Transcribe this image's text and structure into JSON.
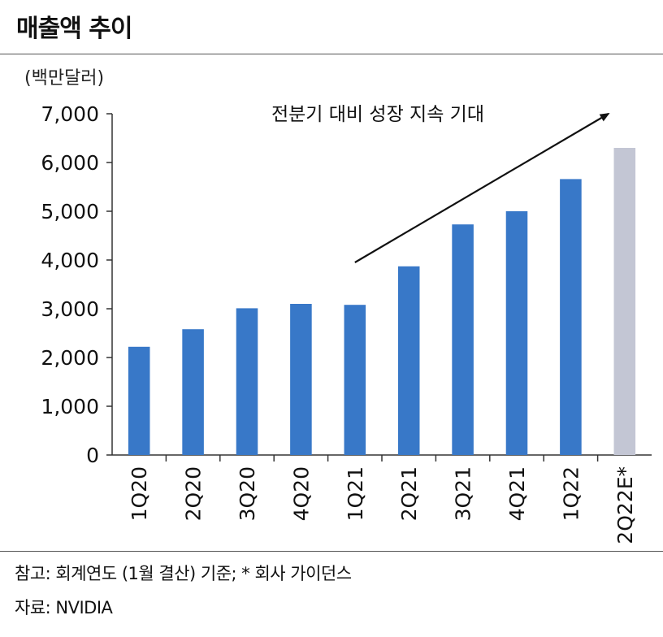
{
  "header": {
    "title": "매출액 추이"
  },
  "chart_data": {
    "type": "bar",
    "title": "매출액 추이",
    "ylabel": "(백만달러)",
    "xlabel": "",
    "ylim": [
      0,
      7000
    ],
    "yticks": [
      0,
      1000,
      2000,
      3000,
      4000,
      5000,
      6000,
      7000
    ],
    "ytick_labels": [
      "0",
      "1,000",
      "2,000",
      "3,000",
      "4,000",
      "5,000",
      "6,000",
      "7,000"
    ],
    "categories": [
      "1Q20",
      "2Q20",
      "3Q20",
      "4Q20",
      "1Q21",
      "2Q21",
      "3Q21",
      "4Q21",
      "1Q22",
      "2Q22E*"
    ],
    "values": [
      2220,
      2580,
      3010,
      3100,
      3080,
      3870,
      4730,
      5000,
      5660,
      6300
    ],
    "estimated": [
      false,
      false,
      false,
      false,
      false,
      false,
      false,
      false,
      false,
      true
    ],
    "colors": {
      "actual": "#3878c8",
      "estimate": "#c3c6d4"
    },
    "annotation": {
      "text": "전분기 대비 성장 지속 기대",
      "arrow_from": {
        "category": "1Q21",
        "value": 3950
      },
      "arrow_to": {
        "category": "2Q22E*",
        "value": 7000
      }
    },
    "grid": false,
    "legend": "none"
  },
  "footer": {
    "note": "참고: 회계연도 (1월 결산) 기준; * 회사 가이던스",
    "source": "자료: NVIDIA"
  }
}
